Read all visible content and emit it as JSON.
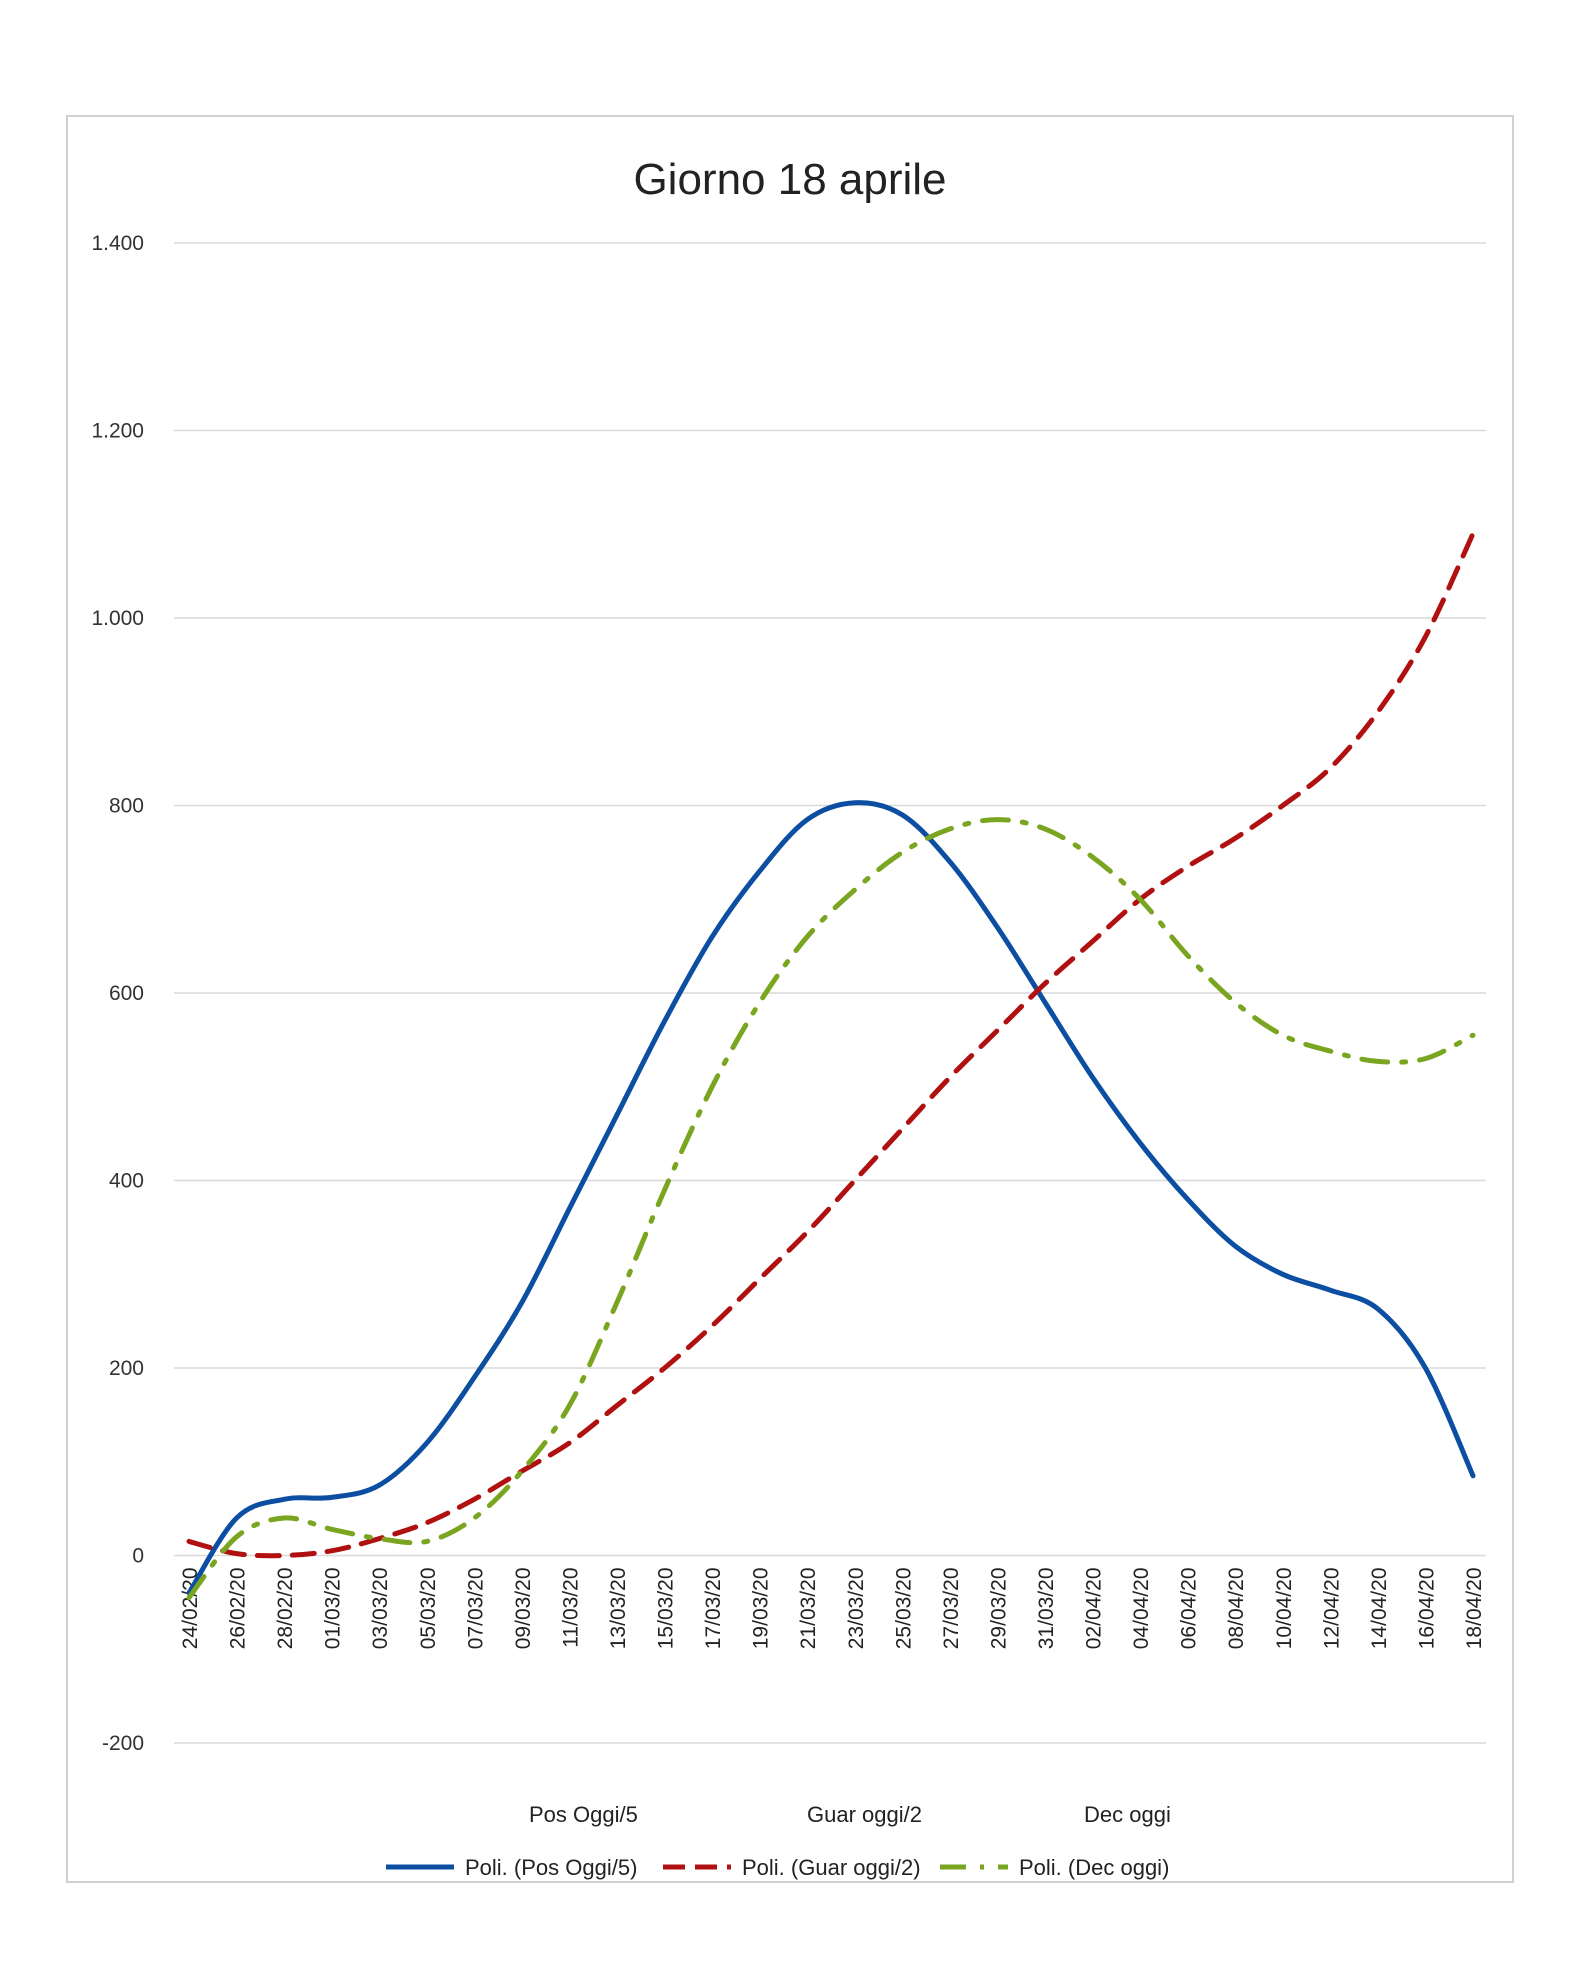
{
  "chart_data": {
    "type": "line",
    "title": "Giorno 18 aprile",
    "xlabel": "",
    "ylabel": "",
    "ylim": [
      -200,
      1400
    ],
    "yticks": [
      -200,
      0,
      200,
      400,
      600,
      800,
      1000,
      1200,
      1400
    ],
    "ytick_labels": [
      "-200",
      "0",
      "200",
      "400",
      "600",
      "800",
      "1.000",
      "1.200",
      "1.400"
    ],
    "x_start": "24/02/20",
    "x_end": "18/04/20",
    "xtick_labels": [
      "24/02/20",
      "26/02/20",
      "28/02/20",
      "01/03/20",
      "03/03/20",
      "05/03/20",
      "07/03/20",
      "09/03/20",
      "11/03/20",
      "13/03/20",
      "15/03/20",
      "17/03/20",
      "19/03/20",
      "21/03/20",
      "23/03/20",
      "25/03/20",
      "27/03/20",
      "29/03/20",
      "31/03/20",
      "02/04/20",
      "04/04/20",
      "06/04/20",
      "08/04/20",
      "10/04/20",
      "12/04/20",
      "14/04/20",
      "16/04/20",
      "18/04/20"
    ],
    "grid": true,
    "legend_position": "bottom",
    "legend_names": [
      "Pos Oggi/5",
      "Guar oggi/2",
      "Dec oggi"
    ],
    "series": [
      {
        "name": "Poli. (Pos Oggi/5)",
        "color": "#0b4ea2",
        "style": "solid",
        "x": [
          "24/02/20",
          "26/02/20",
          "28/02/20",
          "01/03/20",
          "03/03/20",
          "05/03/20",
          "07/03/20",
          "09/03/20",
          "11/03/20",
          "13/03/20",
          "15/03/20",
          "17/03/20",
          "19/03/20",
          "21/03/20",
          "23/03/20",
          "25/03/20",
          "27/03/20",
          "29/03/20",
          "31/03/20",
          "02/04/20",
          "04/04/20",
          "06/04/20",
          "08/04/20",
          "10/04/20",
          "12/04/20",
          "14/04/20",
          "16/04/20",
          "18/04/20"
        ],
        "y": [
          -40,
          40,
          60,
          62,
          75,
          120,
          190,
          270,
          370,
          470,
          570,
          660,
          730,
          785,
          803,
          790,
          740,
          670,
          590,
          510,
          440,
          380,
          330,
          300,
          283,
          263,
          200,
          85
        ]
      },
      {
        "name": "Poli. (Guar oggi/2)",
        "color": "#b01010",
        "style": "dashed",
        "x": [
          "24/02/20",
          "26/02/20",
          "28/02/20",
          "01/03/20",
          "03/03/20",
          "05/03/20",
          "07/03/20",
          "09/03/20",
          "11/03/20",
          "13/03/20",
          "15/03/20",
          "17/03/20",
          "19/03/20",
          "21/03/20",
          "23/03/20",
          "25/03/20",
          "27/03/20",
          "29/03/20",
          "31/03/20",
          "02/04/20",
          "04/04/20",
          "06/04/20",
          "08/04/20",
          "10/04/20",
          "12/04/20",
          "14/04/20",
          "16/04/20",
          "18/04/20"
        ],
        "y": [
          15,
          2,
          0,
          5,
          18,
          35,
          60,
          90,
          120,
          160,
          200,
          245,
          295,
          345,
          400,
          455,
          510,
          560,
          610,
          655,
          700,
          735,
          765,
          800,
          840,
          900,
          980,
          1090
        ]
      },
      {
        "name": "Poli. (Dec oggi)",
        "color": "#7aa520",
        "style": "dashdot",
        "x": [
          "24/02/20",
          "26/02/20",
          "28/02/20",
          "01/03/20",
          "03/03/20",
          "05/03/20",
          "07/03/20",
          "09/03/20",
          "11/03/20",
          "13/03/20",
          "15/03/20",
          "17/03/20",
          "19/03/20",
          "21/03/20",
          "23/03/20",
          "25/03/20",
          "27/03/20",
          "29/03/20",
          "31/03/20",
          "02/04/20",
          "04/04/20",
          "06/04/20",
          "08/04/20",
          "10/04/20",
          "12/04/20",
          "14/04/20",
          "16/04/20",
          "18/04/20"
        ],
        "y": [
          -45,
          20,
          40,
          28,
          18,
          15,
          40,
          90,
          160,
          270,
          390,
          500,
          590,
          660,
          710,
          750,
          775,
          785,
          775,
          745,
          700,
          640,
          590,
          555,
          538,
          527,
          530,
          555
        ]
      }
    ]
  }
}
